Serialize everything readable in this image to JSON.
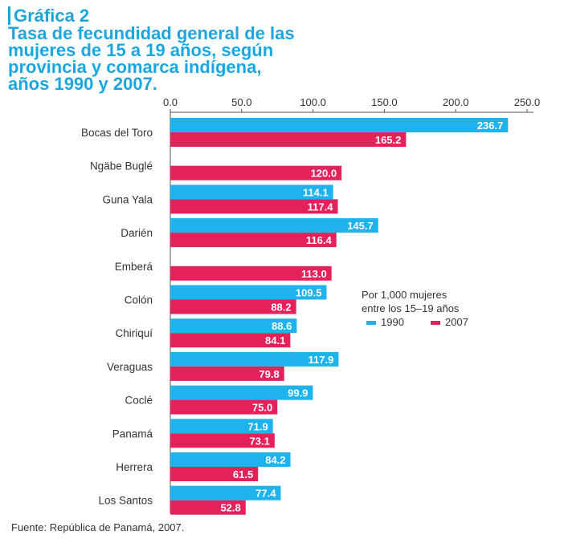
{
  "header": {
    "label": "Gráfica 2",
    "title_lines": [
      "Tasa de fecundidad general de las",
      "mujeres de 15 a 19 años, según",
      "provincia y comarca indígena,",
      "años 1990 y 2007."
    ]
  },
  "footer": {
    "source": "Fuente: República de Panamá, 2007."
  },
  "chart_data": {
    "type": "bar",
    "orientation": "horizontal",
    "title": "Tasa de fecundidad general de las mujeres de 15 a 19 años, según provincia y comarca indígena, años 1990 y 2007.",
    "xlim": [
      0,
      250
    ],
    "xticks": [
      "0.0",
      "50.0",
      "100.0",
      "150.0",
      "200.0",
      "250.0"
    ],
    "unit_note": [
      "Por 1,000 mujeres",
      "entre los 15–19 años"
    ],
    "legend_position": "right-middle",
    "grid": false,
    "categories": [
      "Bocas del Toro",
      "Ngäbe Buglé",
      "Guna Yala",
      "Darién",
      "Emberá",
      "Colón",
      "Chiriquí",
      "Veraguas",
      "Coclé",
      "Panamá",
      "Herrera",
      "Los Santos"
    ],
    "series": [
      {
        "name": "1990",
        "color": "#1eb3ec",
        "values": [
          236.7,
          null,
          114.1,
          145.7,
          null,
          109.5,
          88.6,
          117.9,
          99.9,
          71.9,
          84.2,
          77.4
        ],
        "labels": [
          "236.7",
          "",
          "114.1",
          "145.7",
          "",
          "109.5",
          "88.6",
          "117.9",
          "99.9",
          "71.9",
          "84.2",
          "77.4"
        ]
      },
      {
        "name": "2007",
        "color": "#e4215b",
        "values": [
          165.2,
          120.0,
          117.4,
          116.4,
          113.0,
          88.2,
          84.1,
          79.8,
          75.0,
          73.1,
          61.5,
          52.8
        ],
        "labels": [
          "165.2",
          "120.0",
          "117.4",
          "116.4",
          "113.0",
          "88.2",
          "84.1",
          "79.8",
          "75.0",
          "73.1",
          "61.5",
          "52.8"
        ]
      }
    ]
  }
}
